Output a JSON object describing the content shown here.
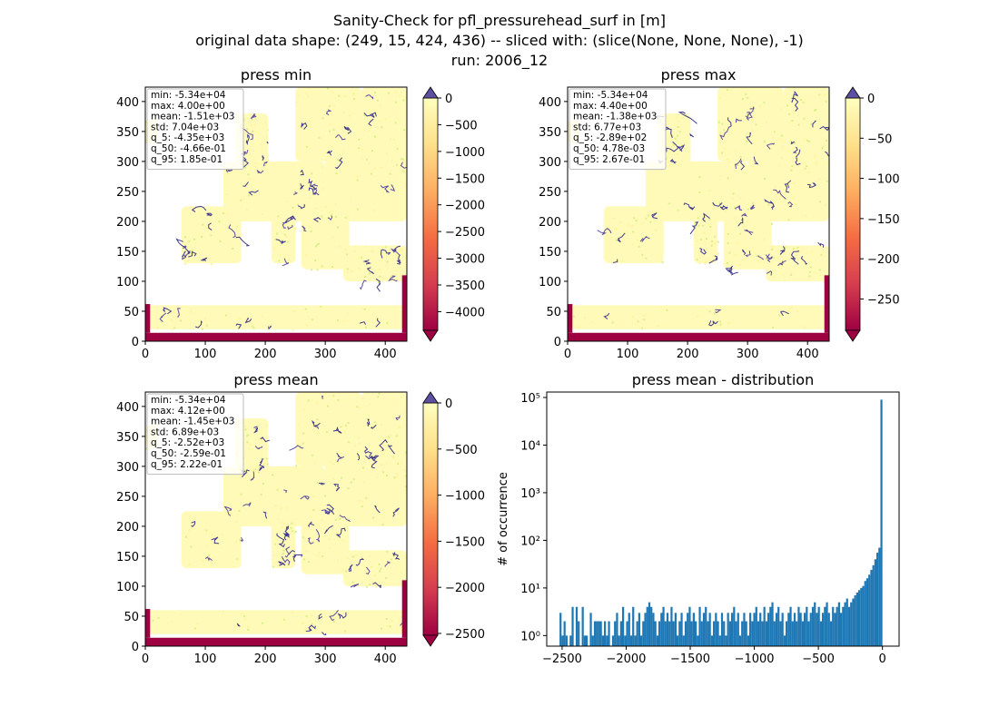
{
  "figure": {
    "title_lines": [
      "Sanity-Check for pfl_pressurehead_surf in [m]",
      "original data shape: (249, 15, 424, 436) -- sliced with: (slice(None, None, None), -1)",
      "run: 2006_12"
    ]
  },
  "colormap": [
    "#9e0142",
    "#d53e4f",
    "#f46d43",
    "#fdae61",
    "#fee08b",
    "#ffffbf"
  ],
  "over_color": "#5e4fa2",
  "chart_data": [
    {
      "type": "heatmap",
      "title": "press min",
      "xlim": [
        0,
        436
      ],
      "ylim": [
        0,
        424
      ],
      "xticks": [
        0,
        100,
        200,
        300,
        400
      ],
      "yticks": [
        0,
        50,
        100,
        150,
        200,
        250,
        300,
        350,
        400
      ],
      "stats": [
        "min: -5.34e+04",
        "max: 4.00e+00",
        "mean: -1.51e+03",
        "std: 7.04e+03",
        "q_5: -4.35e+03",
        "q_50: -4.66e-01",
        "q_95: 1.85e-01"
      ],
      "colorbar": {
        "vmin": -4350,
        "vmax": 0,
        "ticks": [
          0,
          -500,
          -1000,
          -1500,
          -2000,
          -2500,
          -3000,
          -3500,
          -4000
        ]
      }
    },
    {
      "type": "heatmap",
      "title": "press max",
      "xlim": [
        0,
        436
      ],
      "ylim": [
        0,
        424
      ],
      "xticks": [
        0,
        100,
        200,
        300,
        400
      ],
      "yticks": [
        0,
        50,
        100,
        150,
        200,
        250,
        300,
        350,
        400
      ],
      "stats": [
        "min: -5.34e+04",
        "max: 4.40e+00",
        "mean: -1.38e+03",
        "std: 6.77e+03",
        "q_5: -2.89e+02",
        "q_50: 4.78e-03",
        "q_95: 2.67e-01"
      ],
      "colorbar": {
        "vmin": -289,
        "vmax": 0,
        "ticks": [
          0,
          -50,
          -100,
          -150,
          -200,
          -250
        ]
      }
    },
    {
      "type": "heatmap",
      "title": "press mean",
      "xlim": [
        0,
        436
      ],
      "ylim": [
        0,
        424
      ],
      "xticks": [
        0,
        100,
        200,
        300,
        400
      ],
      "yticks": [
        0,
        50,
        100,
        150,
        200,
        250,
        300,
        350,
        400
      ],
      "stats": [
        "min: -5.34e+04",
        "max: 4.12e+00",
        "mean: -1.45e+03",
        "std: 6.89e+03",
        "q_5: -2.52e+03",
        "q_50: -2.59e-01",
        "q_95: 2.22e-01"
      ],
      "colorbar": {
        "vmin": -2520,
        "vmax": 0,
        "ticks": [
          0,
          -500,
          -1000,
          -1500,
          -2000,
          -2500
        ]
      }
    },
    {
      "type": "bar",
      "title": "press mean - distribution",
      "xlabel": "",
      "ylabel": "# of occurrence",
      "yscale": "log",
      "xlim": [
        -2620,
        130
      ],
      "ylim": [
        0.6,
        130000
      ],
      "xticks": [
        -2500,
        -2000,
        -1500,
        -1000,
        -500,
        0
      ],
      "xtick_labels": [
        "−2500",
        "−2000",
        "−1500",
        "−1000",
        "−500",
        "0"
      ],
      "yticks": [
        1,
        10,
        100,
        1000,
        10000,
        100000
      ],
      "ytick_labels": [
        "10⁰",
        "10¹",
        "10²",
        "10³",
        "10⁴",
        "10⁵"
      ],
      "bar_color": "#1f77b4",
      "bin_edges": [
        -2520,
        0
      ],
      "counts": [
        3,
        1,
        2,
        1,
        0,
        1,
        4,
        0,
        4,
        2,
        0,
        4,
        1,
        1,
        0,
        3,
        1,
        2,
        2,
        2,
        2,
        1,
        2,
        1,
        2,
        0,
        1,
        2,
        3,
        1,
        2,
        4,
        1,
        2,
        3,
        1,
        4,
        1,
        2,
        3,
        1,
        2,
        3,
        4,
        5,
        4,
        3,
        2,
        1,
        2,
        3,
        4,
        2,
        3,
        2,
        4,
        2,
        3,
        1,
        2,
        3,
        1,
        2,
        3,
        4,
        2,
        3,
        2,
        1,
        4,
        2,
        3,
        4,
        2,
        3,
        1,
        2,
        3,
        2,
        1,
        3,
        2,
        1,
        3,
        2,
        3,
        4,
        2,
        3,
        1,
        2,
        3,
        2,
        1,
        3,
        2,
        3,
        4,
        2,
        3,
        2,
        4,
        2,
        3,
        4,
        5,
        2,
        3,
        4,
        2,
        3,
        1,
        2,
        3,
        4,
        2,
        3,
        2,
        4,
        3,
        2,
        3,
        4,
        2,
        3,
        4,
        5,
        3,
        4,
        2,
        3,
        4,
        5,
        3,
        2,
        4,
        3,
        4,
        5,
        3,
        4,
        5,
        6,
        4,
        5,
        6,
        7,
        8,
        9,
        10,
        11,
        14,
        16,
        19,
        24,
        30,
        40,
        55,
        70,
        90000
      ]
    }
  ]
}
